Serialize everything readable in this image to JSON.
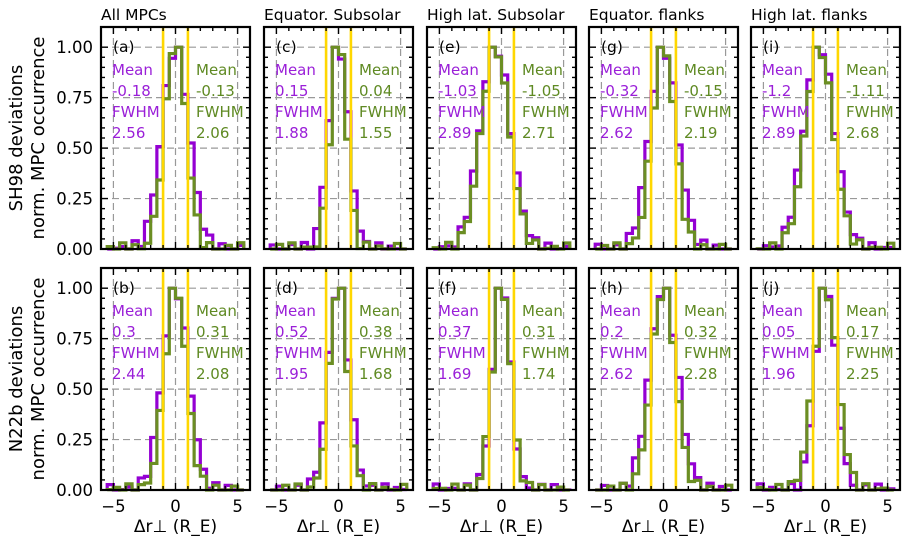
{
  "figure": {
    "x_axis_label": "Δr⊥ (R_E)",
    "row_labels": [
      [
        "SH98 deviations",
        "norm. MPC occurrence"
      ],
      [
        "N22b deviations",
        "norm. MPC occurrence"
      ]
    ],
    "column_titles": [
      "All MPCs",
      "Equator. Subsolar",
      "High lat. Subsolar",
      "Equator. flanks",
      "High lat. flanks"
    ],
    "colors": {
      "series_a": "#9400d3",
      "series_b": "#6b8e23",
      "markers": "#ffd700",
      "grid": "#999999"
    }
  },
  "chart_data": [
    {
      "panel": "(a)",
      "type": "bar",
      "series": [
        {
          "name": "",
          "stat_label": "Mean",
          "stat_value": "-0.18",
          "width_label": "FWHM",
          "width_value": "2.56",
          "peak_x": 0
        },
        {
          "name": "",
          "stat_label": "Mean",
          "stat_value": "-0.13",
          "width_label": "FWHM",
          "width_value": "2.06",
          "peak_x": 0
        }
      ],
      "xlim": [
        -6,
        6
      ],
      "ylim": [
        0,
        1.1
      ],
      "xticks": [
        -5,
        0,
        5
      ],
      "yticks": [
        0.0,
        0.25,
        0.5,
        0.75,
        1.0
      ],
      "vlines": [
        -1,
        1
      ]
    },
    {
      "panel": "(c)",
      "type": "bar",
      "series": [
        {
          "name": "",
          "stat_label": "Mean",
          "stat_value": "0.15",
          "width_label": "FWHM",
          "width_value": "1.88",
          "peak_x": 0
        },
        {
          "name": "",
          "stat_label": "Mean",
          "stat_value": "0.04",
          "width_label": "FWHM",
          "width_value": "1.55",
          "peak_x": 0
        }
      ],
      "xlim": [
        -6,
        6
      ],
      "ylim": [
        0,
        1.1
      ],
      "xticks": [
        -5,
        0,
        5
      ],
      "yticks": [
        0.0,
        0.25,
        0.5,
        0.75,
        1.0
      ],
      "vlines": [
        -1,
        1
      ]
    },
    {
      "panel": "(e)",
      "type": "bar",
      "series": [
        {
          "name": "",
          "stat_label": "Mean",
          "stat_value": "-1.03",
          "width_label": "FWHM",
          "width_value": "2.89",
          "peak_x": -0.5
        },
        {
          "name": "",
          "stat_label": "Mean",
          "stat_value": "-1.05",
          "width_label": "FWHM",
          "width_value": "2.71",
          "peak_x": -0.5
        }
      ],
      "xlim": [
        -6,
        6
      ],
      "ylim": [
        0,
        1.1
      ],
      "xticks": [
        -5,
        0,
        5
      ],
      "yticks": [
        0.0,
        0.25,
        0.5,
        0.75,
        1.0
      ],
      "vlines": [
        -1,
        1
      ]
    },
    {
      "panel": "(g)",
      "type": "bar",
      "series": [
        {
          "name": "",
          "stat_label": "Mean",
          "stat_value": "-0.32",
          "width_label": "FWHM",
          "width_value": "2.62",
          "peak_x": 0
        },
        {
          "name": "",
          "stat_label": "Mean",
          "stat_value": "-0.15",
          "width_label": "FWHM",
          "width_value": "2.19",
          "peak_x": 0
        }
      ],
      "xlim": [
        -6,
        6
      ],
      "ylim": [
        0,
        1.1
      ],
      "xticks": [
        -5,
        0,
        5
      ],
      "yticks": [
        0.0,
        0.25,
        0.5,
        0.75,
        1.0
      ],
      "vlines": [
        -1,
        1
      ]
    },
    {
      "panel": "(i)",
      "type": "bar",
      "series": [
        {
          "name": "",
          "stat_label": "Mean",
          "stat_value": "-1.2",
          "width_label": "FWHM",
          "width_value": "2.89",
          "peak_x": -0.5
        },
        {
          "name": "",
          "stat_label": "Mean",
          "stat_value": "-1.11",
          "width_label": "FWHM",
          "width_value": "2.68",
          "peak_x": -0.5
        }
      ],
      "xlim": [
        -6,
        6
      ],
      "ylim": [
        0,
        1.1
      ],
      "xticks": [
        -5,
        0,
        5
      ],
      "yticks": [
        0.0,
        0.25,
        0.5,
        0.75,
        1.0
      ],
      "vlines": [
        -1,
        1
      ]
    },
    {
      "panel": "(b)",
      "type": "bar",
      "series": [
        {
          "name": "",
          "stat_label": "Mean",
          "stat_value": "0.3",
          "width_label": "FWHM",
          "width_value": "2.44",
          "peak_x": 0
        },
        {
          "name": "",
          "stat_label": "Mean",
          "stat_value": "0.31",
          "width_label": "FWHM",
          "width_value": "2.08",
          "peak_x": 0
        }
      ],
      "xlim": [
        -6,
        6
      ],
      "ylim": [
        0,
        1.1
      ],
      "xticks": [
        -5,
        0,
        5
      ],
      "yticks": [
        0.0,
        0.25,
        0.5,
        0.75,
        1.0
      ],
      "vlines": [
        -1,
        1
      ]
    },
    {
      "panel": "(d)",
      "type": "bar",
      "series": [
        {
          "name": "",
          "stat_label": "Mean",
          "stat_value": "0.52",
          "width_label": "FWHM",
          "width_value": "1.95",
          "peak_x": 0
        },
        {
          "name": "",
          "stat_label": "Mean",
          "stat_value": "0.38",
          "width_label": "FWHM",
          "width_value": "1.68",
          "peak_x": 0
        }
      ],
      "xlim": [
        -6,
        6
      ],
      "ylim": [
        0,
        1.1
      ],
      "xticks": [
        -5,
        0,
        5
      ],
      "yticks": [
        0.0,
        0.25,
        0.5,
        0.75,
        1.0
      ],
      "vlines": [
        -1,
        1
      ]
    },
    {
      "panel": "(f)",
      "type": "bar",
      "series": [
        {
          "name": "",
          "stat_label": "Mean",
          "stat_value": "0.37",
          "width_label": "FWHM",
          "width_value": "1.69",
          "peak_x": 0
        },
        {
          "name": "",
          "stat_label": "Mean",
          "stat_value": "0.31",
          "width_label": "FWHM",
          "width_value": "1.74",
          "peak_x": 0
        }
      ],
      "xlim": [
        -6,
        6
      ],
      "ylim": [
        0,
        1.1
      ],
      "xticks": [
        -5,
        0,
        5
      ],
      "yticks": [
        0.0,
        0.25,
        0.5,
        0.75,
        1.0
      ],
      "vlines": [
        -1,
        1
      ]
    },
    {
      "panel": "(h)",
      "type": "bar",
      "series": [
        {
          "name": "",
          "stat_label": "Mean",
          "stat_value": "0.2",
          "width_label": "FWHM",
          "width_value": "2.62",
          "peak_x": 0
        },
        {
          "name": "",
          "stat_label": "Mean",
          "stat_value": "0.32",
          "width_label": "FWHM",
          "width_value": "2.28",
          "peak_x": 0
        }
      ],
      "xlim": [
        -6,
        6
      ],
      "ylim": [
        0,
        1.1
      ],
      "xticks": [
        -5,
        0,
        5
      ],
      "yticks": [
        0.0,
        0.25,
        0.5,
        0.75,
        1.0
      ],
      "vlines": [
        -1,
        1
      ]
    },
    {
      "panel": "(j)",
      "type": "bar",
      "series": [
        {
          "name": "",
          "stat_label": "Mean",
          "stat_value": "0.05",
          "width_label": "FWHM",
          "width_value": "1.96",
          "peak_x": 0
        },
        {
          "name": "",
          "stat_label": "Mean",
          "stat_value": "0.17",
          "width_label": "FWHM",
          "width_value": "2.25",
          "peak_x": 0
        }
      ],
      "xlim": [
        -6,
        6
      ],
      "ylim": [
        0,
        1.1
      ],
      "xticks": [
        -5,
        0,
        5
      ],
      "yticks": [
        0.0,
        0.25,
        0.5,
        0.75,
        1.0
      ],
      "vlines": [
        -1,
        1
      ]
    }
  ]
}
